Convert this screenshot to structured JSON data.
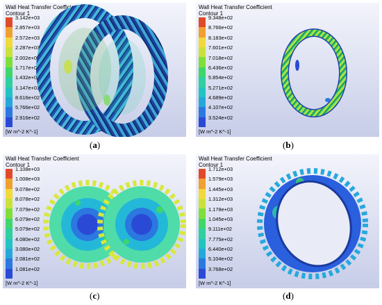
{
  "legend_colors": [
    "#2a4ad6",
    "#2a78e0",
    "#25a8d8",
    "#20c4c0",
    "#2fcfa0",
    "#3fd66a",
    "#7fdf3a",
    "#c9e23a",
    "#f2d93a",
    "#f0a030",
    "#e04a2a"
  ],
  "panels": [
    {
      "title": "Wall Heat Transfer Coefficient",
      "subtitle": "Contour 1",
      "ticks": [
        "3.142e+03",
        "2.857e+03",
        "2.572e+03",
        "2.287e+03",
        "2.002e+03",
        "1.717e+03",
        "1.432e+03",
        "1.147e+03",
        "8.616e+02",
        "5.766e+02",
        "2.916e+02"
      ],
      "units": "[W m^-2 K^-1]",
      "caption": "a"
    },
    {
      "title": "Wall Heat Transfer Coefficient",
      "subtitle": "Contour 1",
      "ticks": [
        "9.348e+02",
        "8.766e+02",
        "8.183e+02",
        "7.601e+02",
        "7.018e+02",
        "6.436e+02",
        "5.854e+02",
        "5.271e+02",
        "4.689e+02",
        "4.107e+02",
        "3.524e+02"
      ],
      "units": "[W m^-2 K^-1]",
      "caption": "b"
    },
    {
      "title": "Wall Heat Transfer Coefficient",
      "subtitle": "Contour 1",
      "ticks": [
        "1.108e+03",
        "1.008e+03",
        "9.078e+02",
        "8.078e+02",
        "7.079e+02",
        "6.079e+02",
        "5.079e+02",
        "4.080e+02",
        "3.080e+02",
        "2.081e+02",
        "1.081e+02"
      ],
      "units": "[W m^-2 K^-1]",
      "caption": "c"
    },
    {
      "title": "Wall Heat Transfer Coefficient",
      "subtitle": "Contour 1",
      "ticks": [
        "1.712e+03",
        "1.579e+03",
        "1.445e+03",
        "1.312e+03",
        "1.178e+03",
        "1.045e+03",
        "9.111e+02",
        "7.775e+02",
        "6.440e+02",
        "5.104e+02",
        "3.768e+02"
      ],
      "units": "[W m^-2 K^-1]",
      "caption": "d"
    }
  ]
}
